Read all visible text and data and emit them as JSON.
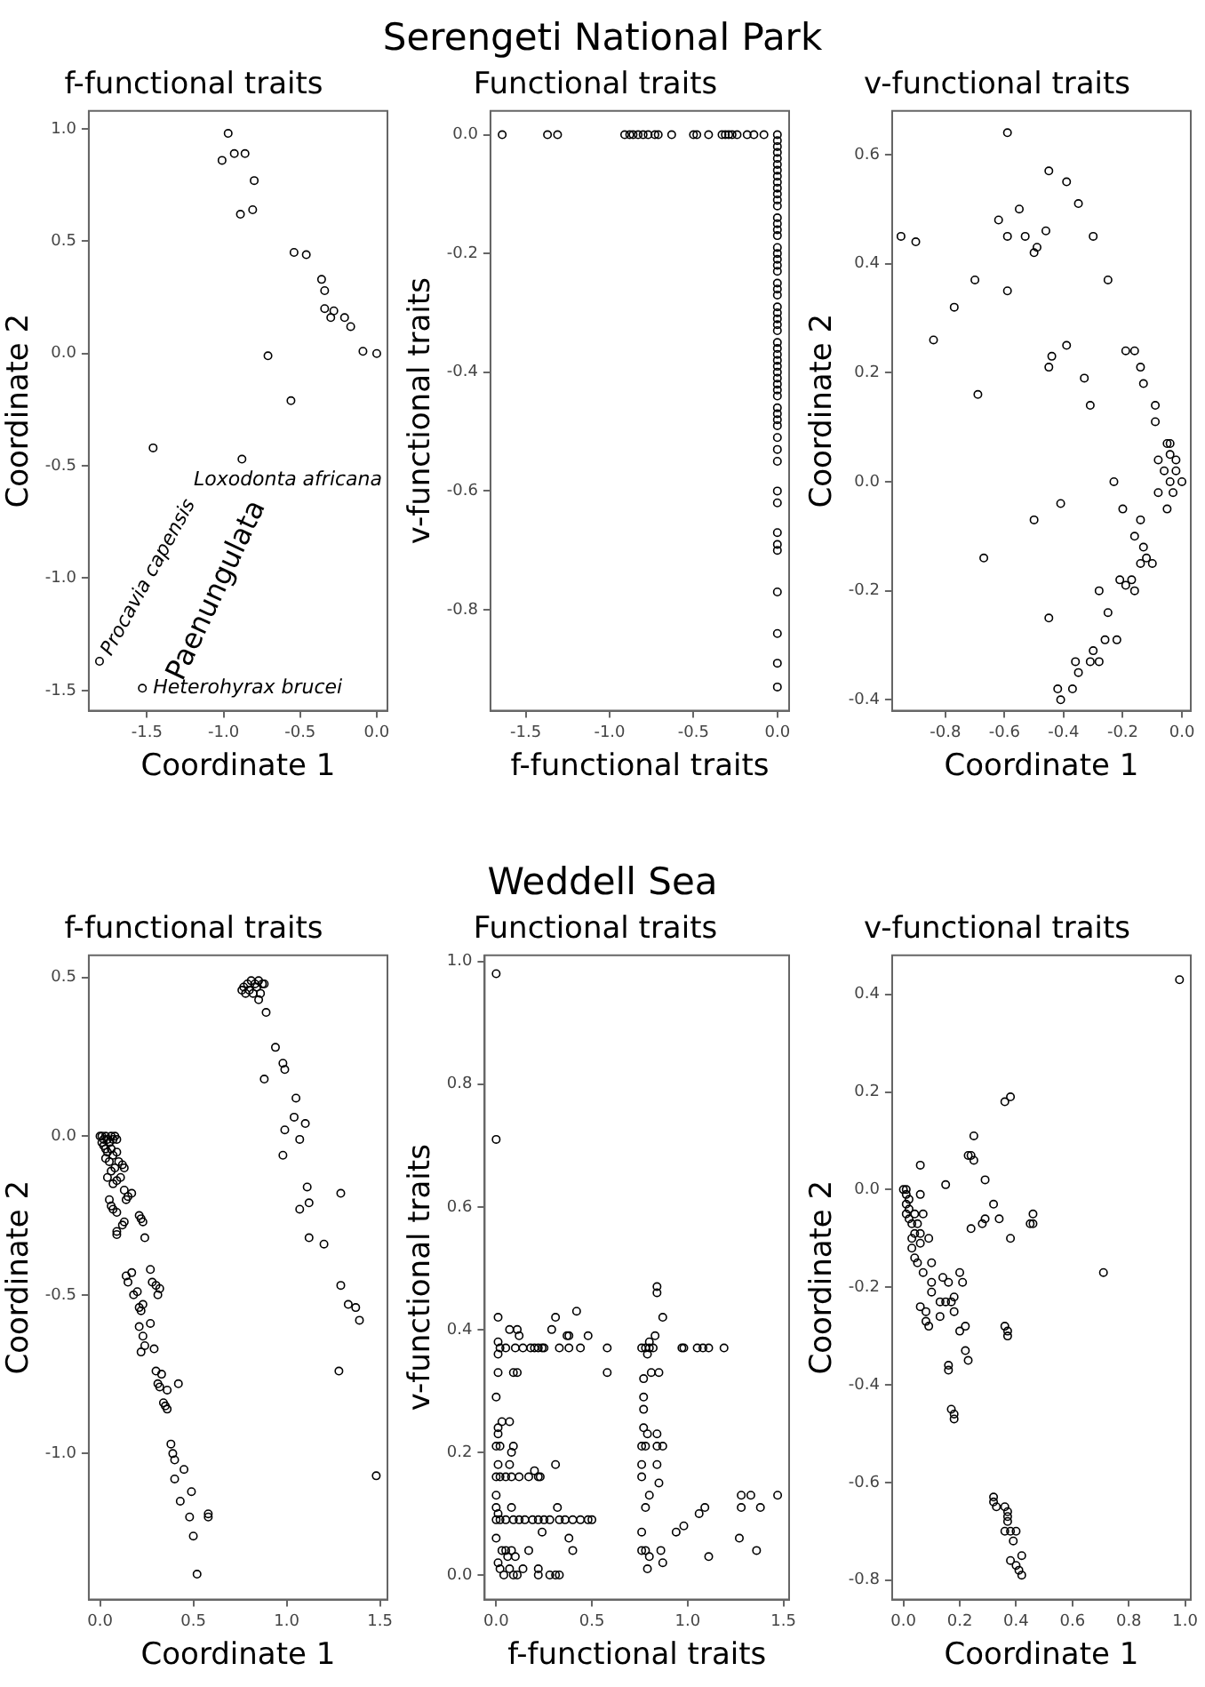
{
  "chart_data": [
    {
      "type": "scatter",
      "subtitle": "f-functional traits",
      "xlabel": "Coordinate 1",
      "ylabel": "Coordinate 2",
      "marker": "circle",
      "xlim": [
        -1.88,
        0.07
      ],
      "ylim": [
        -1.59,
        1.08
      ],
      "xticks": [
        {
          "value": -1.5,
          "label": "-1.5"
        },
        {
          "value": -1,
          "label": "-1.0"
        },
        {
          "value": -0.5,
          "label": "-0.5"
        },
        {
          "value": 0,
          "label": "0.0"
        }
      ],
      "yticks": [
        {
          "value": -1.5,
          "label": "-1.5"
        },
        {
          "value": -1,
          "label": "-1.0"
        },
        {
          "value": -0.5,
          "label": "-0.5"
        },
        {
          "value": 0,
          "label": "0.0"
        },
        0.5,
        {
          "value": 1,
          "label": "1.0"
        }
      ],
      "annotations": [
        {
          "text": "Loxodonta africana",
          "x": -0.88,
          "y": -0.47
        },
        {
          "text": "Procavia capensis",
          "x": -1.81,
          "y": -1.37
        },
        {
          "text": "Heterohyrax brucei",
          "x": -1.53,
          "y": -1.49
        },
        "Paenungulata"
      ],
      "series": [
        {
          "color": "#000000",
          "x": [
            -0.97,
            -1.01,
            -0.93,
            -0.86,
            -0.8,
            -0.89,
            -0.81,
            -0.54,
            -0.46,
            -0.36,
            -0.34,
            -0.34,
            -0.28,
            -0.3,
            -0.21,
            -0.17,
            -0.09,
            0.0,
            -0.71,
            -0.56,
            -1.46,
            -0.88,
            -1.81,
            -1.53
          ],
          "values": [
            0.98,
            0.86,
            0.89,
            0.89,
            0.77,
            0.62,
            0.64,
            0.45,
            0.44,
            0.33,
            0.28,
            0.2,
            0.19,
            0.16,
            0.16,
            0.12,
            0.01,
            0.0,
            -0.01,
            -0.21,
            -0.42,
            -0.47,
            -1.37,
            -1.49
          ]
        }
      ]
    },
    {
      "type": "scatter",
      "title": "Serengeti National Park",
      "subtitle": "Functional traits",
      "xlabel": "f-functional traits",
      "ylabel": "v-functional traits",
      "marker": "circle",
      "xlim": [
        -1.71,
        0.07
      ],
      "ylim": [
        -0.97,
        0.04
      ],
      "xticks": [
        {
          "value": -1.5,
          "label": "-1.5"
        },
        {
          "value": -1,
          "label": "-1.0"
        },
        {
          "value": -0.5,
          "label": "-0.5"
        },
        {
          "value": 0,
          "label": "0.0"
        }
      ],
      "yticks": [
        {
          "value": -0.8,
          "label": "-0.8"
        },
        {
          "value": -0.6,
          "label": "-0.6"
        },
        {
          "value": -0.4,
          "label": "-0.4"
        },
        {
          "value": -0.2,
          "label": "-0.2"
        },
        {
          "value": 0,
          "label": "0.0"
        }
      ],
      "series": [
        {
          "color": "#000000",
          "x": [
            -1.64,
            -1.37,
            -1.31,
            -0.91,
            -0.88,
            -0.86,
            -0.83,
            -0.8,
            -0.77,
            -0.73,
            -0.71,
            -0.63,
            -0.5,
            -0.48,
            -0.41,
            -0.33,
            -0.31,
            -0.29,
            -0.27,
            -0.24,
            -0.18,
            -0.14,
            -0.08,
            0,
            0,
            0,
            0,
            0,
            0,
            0,
            0,
            0,
            0,
            0,
            0,
            0,
            0,
            0,
            0,
            0,
            0,
            0,
            0,
            0,
            0,
            0,
            0,
            0,
            0,
            0,
            0,
            0,
            0,
            0,
            0,
            0,
            0,
            0,
            0,
            0,
            0,
            0,
            0,
            0,
            0,
            0,
            0,
            0,
            0,
            0,
            0,
            0,
            0,
            0,
            0,
            0,
            0,
            0,
            0
          ],
          "values": [
            0,
            0,
            0,
            0,
            0,
            0,
            0,
            0,
            0,
            0,
            0,
            0,
            0,
            0,
            0,
            0,
            0,
            0,
            0,
            0,
            0,
            0,
            0,
            0,
            -0.01,
            -0.02,
            -0.03,
            -0.04,
            -0.05,
            -0.06,
            -0.07,
            -0.08,
            -0.09,
            -0.1,
            -0.11,
            -0.12,
            -0.14,
            -0.15,
            -0.16,
            -0.17,
            -0.19,
            -0.2,
            -0.21,
            -0.22,
            -0.23,
            -0.25,
            -0.26,
            -0.27,
            -0.29,
            -0.3,
            -0.31,
            -0.32,
            -0.33,
            -0.35,
            -0.36,
            -0.37,
            -0.38,
            -0.39,
            -0.4,
            -0.41,
            -0.42,
            -0.43,
            -0.44,
            -0.46,
            -0.47,
            -0.48,
            -0.49,
            -0.51,
            -0.53,
            -0.55,
            -0.6,
            -0.62,
            -0.67,
            -0.69,
            -0.7,
            -0.77,
            -0.84,
            -0.89,
            -0.93
          ]
        }
      ]
    },
    {
      "type": "scatter",
      "subtitle": "v-functional traits",
      "xlabel": "Coordinate 1",
      "ylabel": "Coordinate 2",
      "marker": "circle",
      "xlim": [
        -0.98,
        0.03
      ],
      "ylim": [
        -0.42,
        0.68
      ],
      "xticks": [
        {
          "value": -0.8,
          "label": "-0.8"
        },
        {
          "value": -0.6,
          "label": "-0.6"
        },
        {
          "value": -0.4,
          "label": "-0.4"
        },
        {
          "value": -0.2,
          "label": "-0.2"
        },
        {
          "value": 0,
          "label": "0.0"
        }
      ],
      "yticks": [
        {
          "value": -0.4,
          "label": "-0.4"
        },
        {
          "value": -0.2,
          "label": "-0.2"
        },
        {
          "value": 0,
          "label": "0.0"
        },
        0.2,
        0.4,
        0.6
      ],
      "series": [
        {
          "color": "#000000",
          "x": [
            -0.59,
            -0.45,
            -0.39,
            -0.35,
            -0.55,
            -0.62,
            -0.95,
            -0.9,
            -0.59,
            -0.53,
            -0.46,
            -0.3,
            -0.49,
            -0.5,
            -0.7,
            -0.25,
            -0.59,
            -0.77,
            -0.84,
            -0.39,
            -0.44,
            -0.45,
            -0.19,
            -0.16,
            -0.14,
            -0.13,
            -0.33,
            -0.69,
            -0.31,
            -0.09,
            -0.09,
            -0.05,
            -0.04,
            -0.04,
            -0.08,
            -0.02,
            -0.06,
            -0.02,
            0.0,
            -0.04,
            -0.23,
            -0.08,
            -0.03,
            -0.05,
            -0.41,
            -0.2,
            -0.14,
            -0.5,
            -0.16,
            -0.13,
            -0.67,
            -0.12,
            -0.14,
            -0.1,
            -0.21,
            -0.19,
            -0.17,
            -0.16,
            -0.28,
            -0.25,
            -0.45,
            -0.26,
            -0.22,
            -0.3,
            -0.31,
            -0.28,
            -0.36,
            -0.35,
            -0.37,
            -0.42,
            -0.41
          ],
          "values": [
            0.64,
            0.57,
            0.55,
            0.51,
            0.5,
            0.48,
            0.45,
            0.44,
            0.45,
            0.45,
            0.46,
            0.45,
            0.43,
            0.42,
            0.37,
            0.37,
            0.35,
            0.32,
            0.26,
            0.25,
            0.23,
            0.21,
            0.24,
            0.24,
            0.21,
            0.18,
            0.19,
            0.16,
            0.14,
            0.14,
            0.11,
            0.07,
            0.07,
            0.05,
            0.04,
            0.04,
            0.02,
            0.02,
            0.0,
            0.0,
            0.0,
            -0.02,
            -0.02,
            -0.05,
            -0.04,
            -0.05,
            -0.07,
            -0.07,
            -0.1,
            -0.12,
            -0.14,
            -0.14,
            -0.15,
            -0.15,
            -0.18,
            -0.19,
            -0.18,
            -0.2,
            -0.2,
            -0.24,
            -0.25,
            -0.29,
            -0.29,
            -0.31,
            -0.33,
            -0.33,
            -0.33,
            -0.35,
            -0.38,
            -0.38,
            -0.4
          ]
        }
      ]
    },
    {
      "type": "scatter",
      "subtitle": "f-functional traits",
      "xlabel": "Coordinate 1",
      "ylabel": "Coordinate 2",
      "marker": "circle",
      "xlim": [
        -0.06,
        1.54
      ],
      "ylim": [
        -1.46,
        0.57
      ],
      "xticks": [
        {
          "value": 0,
          "label": "0.0"
        },
        0.5,
        {
          "value": 1,
          "label": "1.0"
        },
        1.5
      ],
      "yticks": [
        {
          "value": -1,
          "label": "-1.0"
        },
        {
          "value": -0.5,
          "label": "-0.5"
        },
        {
          "value": 0,
          "label": "0.0"
        },
        0.5
      ],
      "series": [
        {
          "color": "#000000",
          "x": [
            0.76,
            0.77,
            0.78,
            0.79,
            0.8,
            0.81,
            0.82,
            0.83,
            0.84,
            0.85,
            0.86,
            0.87,
            0.88,
            0.85,
            0.89,
            0.94,
            0.98,
            0.99,
            0.88,
            1.05,
            1.04,
            1.1,
            0.99,
            1.07,
            0.98,
            1.11,
            1.29,
            1.12,
            1.07,
            1.12,
            1.2,
            1.29,
            1.33,
            1.37,
            1.39,
            1.28,
            1.48,
            0.0,
            0.01,
            0.02,
            0.01,
            0.03,
            0.04,
            0.02,
            0.03,
            0.05,
            0.06,
            0.07,
            0.08,
            0.09,
            0.04,
            0.06,
            0.07,
            0.03,
            0.05,
            0.09,
            0.1,
            0.12,
            0.13,
            0.08,
            0.06,
            0.04,
            0.07,
            0.09,
            0.11,
            0.13,
            0.14,
            0.17,
            0.15,
            0.05,
            0.06,
            0.07,
            0.09,
            0.13,
            0.12,
            0.09,
            0.09,
            0.21,
            0.22,
            0.23,
            0.24,
            0.27,
            0.28,
            0.3,
            0.32,
            0.31,
            0.17,
            0.14,
            0.15,
            0.18,
            0.2,
            0.21,
            0.22,
            0.23,
            0.21,
            0.27,
            0.23,
            0.24,
            0.22,
            0.29,
            0.3,
            0.33,
            0.31,
            0.32,
            0.36,
            0.42,
            0.34,
            0.35,
            0.36,
            0.38,
            0.39,
            0.4,
            0.45,
            0.4,
            0.49,
            0.43,
            0.48,
            0.58,
            0.58,
            0.5,
            0.52
          ],
          "values": [
            0.46,
            0.47,
            0.45,
            0.48,
            0.46,
            0.49,
            0.45,
            0.48,
            0.47,
            0.49,
            0.45,
            0.48,
            0.48,
            0.43,
            0.39,
            0.28,
            0.23,
            0.21,
            0.18,
            0.12,
            0.06,
            0.04,
            0.02,
            -0.01,
            -0.06,
            -0.16,
            -0.18,
            -0.21,
            -0.23,
            -0.32,
            -0.34,
            -0.47,
            -0.53,
            -0.54,
            -0.58,
            -0.74,
            -1.07,
            0.0,
            0.0,
            -0.01,
            -0.02,
            0.0,
            -0.01,
            -0.03,
            -0.04,
            -0.02,
            0.0,
            -0.01,
            0.0,
            -0.01,
            -0.05,
            -0.04,
            -0.06,
            -0.07,
            -0.08,
            -0.05,
            -0.08,
            -0.09,
            -0.1,
            -0.1,
            -0.11,
            -0.13,
            -0.15,
            -0.14,
            -0.13,
            -0.17,
            -0.2,
            -0.18,
            -0.19,
            -0.2,
            -0.22,
            -0.23,
            -0.24,
            -0.27,
            -0.28,
            -0.31,
            -0.3,
            -0.25,
            -0.26,
            -0.27,
            -0.32,
            -0.42,
            -0.46,
            -0.47,
            -0.48,
            -0.5,
            -0.43,
            -0.44,
            -0.46,
            -0.5,
            -0.49,
            -0.54,
            -0.55,
            -0.53,
            -0.6,
            -0.59,
            -0.63,
            -0.66,
            -0.68,
            -0.67,
            -0.74,
            -0.75,
            -0.78,
            -0.79,
            -0.8,
            -0.78,
            -0.84,
            -0.85,
            -0.86,
            -0.97,
            -1.0,
            -1.02,
            -1.05,
            -1.08,
            -1.12,
            -1.15,
            -1.2,
            -1.19,
            -1.2,
            -1.26,
            -1.38
          ]
        }
      ]
    },
    {
      "type": "scatter",
      "title": "Weddell Sea",
      "subtitle": "Functional traits",
      "xlabel": "f-functional traits",
      "ylabel": "v-functional traits",
      "marker": "circle",
      "xlim": [
        -0.06,
        1.53
      ],
      "ylim": [
        -0.04,
        1.01
      ],
      "xticks": [
        {
          "value": 0,
          "label": "0.0"
        },
        0.5,
        {
          "value": 1,
          "label": "1.0"
        },
        1.5
      ],
      "yticks": [
        {
          "value": 0,
          "label": "0.0"
        },
        0.2,
        0.4,
        0.6,
        0.8,
        {
          "value": 1,
          "label": "1.0"
        }
      ],
      "series": [
        {
          "color": "#000000",
          "x": [
            0.0,
            0.0,
            0.02,
            0.05,
            0.1,
            0.14,
            0.18,
            0.2,
            0.22,
            0.24,
            0.25,
            0.33,
            0.38,
            0.44,
            0.58,
            0.76,
            0.78,
            0.8,
            0.82,
            0.97,
            0.98,
            1.05,
            1.08,
            1.11,
            1.19,
            0.01,
            0.07,
            0.11,
            0.12,
            0.29,
            0.31,
            0.37,
            0.38,
            0.42,
            0.48,
            0.01,
            0.01,
            0.01,
            0.09,
            0.11,
            0.58,
            0.84,
            0.84,
            0.87,
            0.83,
            0.8,
            0.79,
            0.77,
            0.81,
            0.85,
            0.77,
            0.77,
            0.0,
            0.01,
            0.03,
            0.07,
            0.01,
            0.0,
            0.02,
            0.09,
            0.08,
            0.01,
            0.07,
            0.2,
            0.31,
            0.22,
            0.0,
            0.02,
            0.05,
            0.08,
            0.12,
            0.17,
            0.23,
            0.77,
            0.76,
            0.78,
            0.79,
            0.84,
            0.84,
            0.87,
            0.84,
            0.76,
            0.76,
            0.85,
            0.8,
            0.78,
            0.0,
            0.0,
            0.01,
            0.0,
            0.02,
            0.05,
            0.09,
            0.12,
            0.15,
            0.19,
            0.22,
            0.25,
            0.28,
            0.33,
            0.36,
            0.4,
            0.44,
            0.48,
            0.5,
            0.08,
            0.32,
            0.38,
            0.24,
            0.0,
            0.03,
            0.05,
            0.06,
            0.08,
            0.1,
            0.01,
            0.02,
            0.04,
            0.07,
            0.09,
            0.11,
            0.14,
            0.17,
            0.22,
            0.22,
            0.28,
            0.31,
            0.33,
            0.4,
            0.76,
            0.76,
            0.78,
            0.8,
            0.79,
            0.86,
            0.87,
            0.94,
            0.98,
            1.06,
            1.09,
            1.11,
            1.27,
            1.28,
            1.33,
            1.28,
            1.38,
            1.36,
            1.47
          ],
          "values": [
            0.98,
            0.71,
            0.37,
            0.37,
            0.37,
            0.37,
            0.37,
            0.37,
            0.37,
            0.37,
            0.37,
            0.37,
            0.37,
            0.37,
            0.37,
            0.37,
            0.37,
            0.37,
            0.37,
            0.37,
            0.37,
            0.37,
            0.37,
            0.37,
            0.37,
            0.42,
            0.4,
            0.4,
            0.39,
            0.4,
            0.42,
            0.39,
            0.39,
            0.43,
            0.39,
            0.38,
            0.36,
            0.33,
            0.33,
            0.33,
            0.33,
            0.47,
            0.46,
            0.42,
            0.39,
            0.38,
            0.36,
            0.32,
            0.33,
            0.33,
            0.29,
            0.27,
            0.29,
            0.24,
            0.25,
            0.25,
            0.23,
            0.21,
            0.21,
            0.21,
            0.2,
            0.18,
            0.18,
            0.17,
            0.18,
            0.16,
            0.16,
            0.16,
            0.16,
            0.16,
            0.16,
            0.16,
            0.16,
            0.24,
            0.21,
            0.21,
            0.23,
            0.23,
            0.21,
            0.21,
            0.18,
            0.18,
            0.16,
            0.15,
            0.13,
            0.11,
            0.13,
            0.11,
            0.1,
            0.09,
            0.09,
            0.09,
            0.09,
            0.09,
            0.09,
            0.09,
            0.09,
            0.09,
            0.09,
            0.09,
            0.09,
            0.09,
            0.09,
            0.09,
            0.09,
            0.11,
            0.11,
            0.06,
            0.07,
            0.06,
            0.04,
            0.04,
            0.03,
            0.04,
            0.03,
            0.02,
            0.01,
            0.0,
            0.01,
            0.0,
            0.0,
            0.01,
            0.04,
            0.01,
            0.0,
            0.0,
            0.0,
            0.0,
            0.04,
            0.07,
            0.04,
            0.04,
            0.03,
            0.01,
            0.04,
            0.02,
            0.07,
            0.08,
            0.1,
            0.11,
            0.03,
            0.06,
            0.13,
            0.13,
            0.11,
            0.11,
            0.04,
            0.13
          ]
        }
      ]
    },
    {
      "type": "scatter",
      "subtitle": "v-functional traits",
      "xlabel": "Coordinate 1",
      "ylabel": "Coordinate 2",
      "marker": "circle",
      "xlim": [
        -0.04,
        1.02
      ],
      "ylim": [
        -0.84,
        0.48
      ],
      "xticks": [
        {
          "value": 0,
          "label": "0.0"
        },
        0.2,
        0.4,
        0.6,
        0.8,
        {
          "value": 1,
          "label": "1.0"
        }
      ],
      "yticks": [
        {
          "value": -0.8,
          "label": "-0.8"
        },
        {
          "value": -0.6,
          "label": "-0.6"
        },
        {
          "value": -0.4,
          "label": "-0.4"
        },
        {
          "value": -0.2,
          "label": "-0.2"
        },
        {
          "value": 0,
          "label": "0.0"
        },
        0.2,
        0.4
      ],
      "series": [
        {
          "color": "#000000",
          "x": [
            0.98,
            0.38,
            0.36,
            0.25,
            0.23,
            0.24,
            0.25,
            0.06,
            0.15,
            0.29,
            0.06,
            0.32,
            0.34,
            0.29,
            0.28,
            0.24,
            0.46,
            0.46,
            0.45,
            0.38,
            0.71,
            0.0,
            0.01,
            0.01,
            0.02,
            0.01,
            0.02,
            0.01,
            0.02,
            0.03,
            0.04,
            0.05,
            0.06,
            0.07,
            0.04,
            0.03,
            0.03,
            0.04,
            0.05,
            0.06,
            0.09,
            0.1,
            0.07,
            0.1,
            0.1,
            0.14,
            0.16,
            0.13,
            0.15,
            0.13,
            0.06,
            0.08,
            0.08,
            0.09,
            0.17,
            0.18,
            0.18,
            0.2,
            0.21,
            0.2,
            0.22,
            0.22,
            0.23,
            0.16,
            0.16,
            0.36,
            0.37,
            0.37,
            0.17,
            0.18,
            0.18,
            0.32,
            0.32,
            0.33,
            0.36,
            0.37,
            0.37,
            0.37,
            0.38,
            0.36,
            0.4,
            0.39,
            0.38,
            0.4,
            0.42,
            0.41,
            0.42
          ],
          "values": [
            0.43,
            0.19,
            0.18,
            0.11,
            0.07,
            0.07,
            0.06,
            0.05,
            0.01,
            0.02,
            -0.01,
            -0.03,
            -0.06,
            -0.06,
            -0.07,
            -0.08,
            -0.07,
            -0.05,
            -0.07,
            -0.1,
            -0.17,
            0.0,
            0.0,
            -0.01,
            -0.02,
            -0.03,
            -0.04,
            -0.05,
            -0.06,
            -0.07,
            -0.05,
            -0.07,
            -0.09,
            -0.05,
            -0.09,
            -0.1,
            -0.12,
            -0.14,
            -0.15,
            -0.11,
            -0.1,
            -0.15,
            -0.17,
            -0.19,
            -0.21,
            -0.18,
            -0.19,
            -0.23,
            -0.23,
            -0.26,
            -0.24,
            -0.25,
            -0.27,
            -0.28,
            -0.23,
            -0.22,
            -0.25,
            -0.17,
            -0.19,
            -0.29,
            -0.28,
            -0.33,
            -0.35,
            -0.36,
            -0.37,
            -0.28,
            -0.29,
            -0.3,
            -0.45,
            -0.46,
            -0.47,
            -0.63,
            -0.64,
            -0.65,
            -0.65,
            -0.66,
            -0.67,
            -0.68,
            -0.7,
            -0.7,
            -0.7,
            -0.72,
            -0.76,
            -0.77,
            -0.75,
            -0.78,
            -0.79
          ]
        }
      ]
    }
  ]
}
